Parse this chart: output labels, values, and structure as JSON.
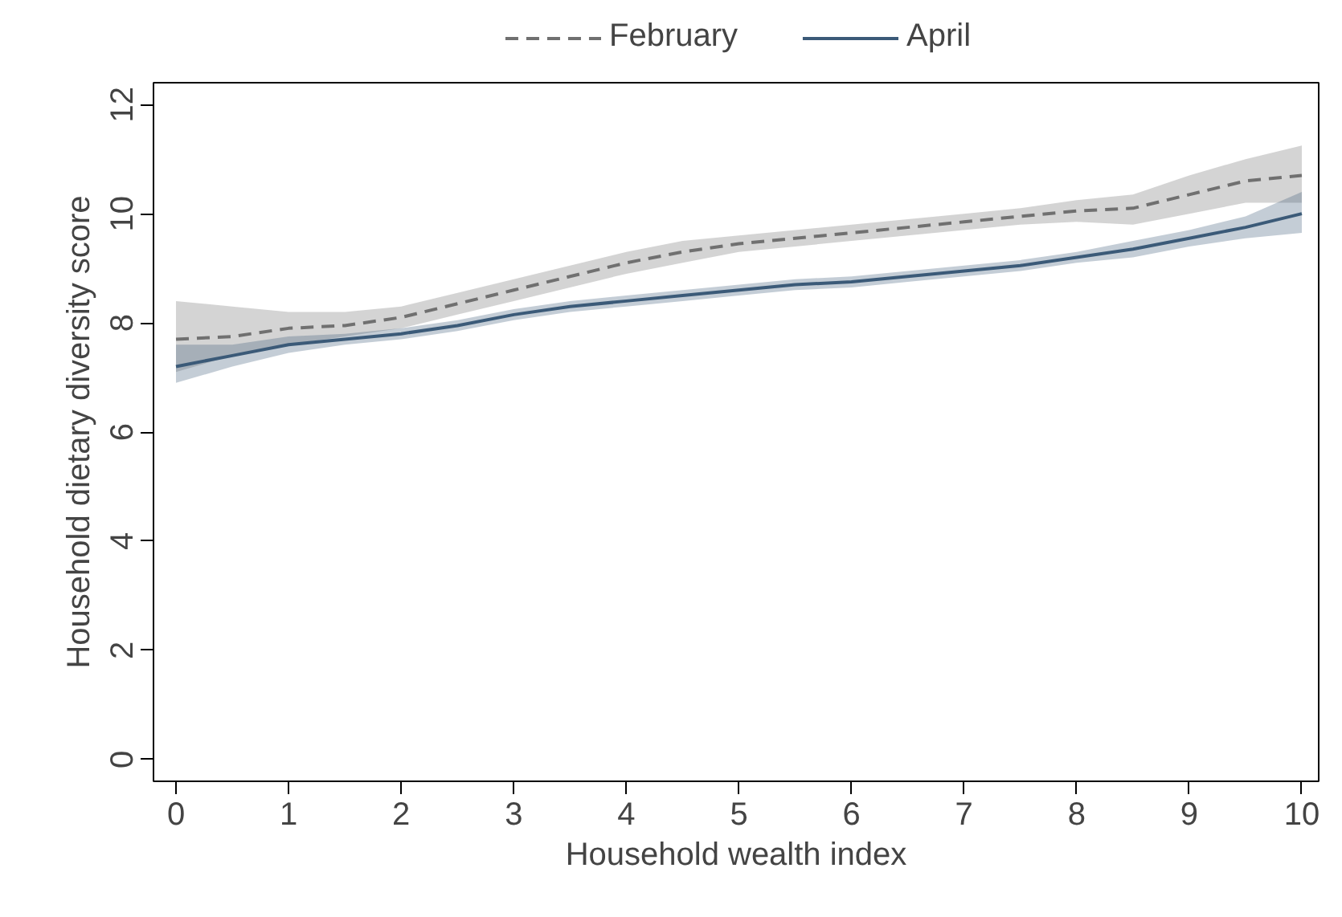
{
  "chart_data": {
    "type": "line",
    "xlabel": "Household wealth index",
    "ylabel": "Household dietary diversity score",
    "xlim": [
      -0.2,
      10.15
    ],
    "ylim": [
      -0.4,
      12.4
    ],
    "xticks": [
      0,
      1,
      2,
      3,
      4,
      5,
      6,
      7,
      8,
      9,
      10
    ],
    "yticks": [
      0,
      2,
      4,
      6,
      8,
      10,
      12
    ],
    "legend": "top",
    "grid": false,
    "x": [
      0,
      0.5,
      1,
      1.5,
      2,
      2.5,
      3,
      3.5,
      4,
      4.5,
      5,
      5.5,
      6,
      6.5,
      7,
      7.5,
      8,
      8.5,
      9,
      9.5,
      10
    ],
    "series": [
      {
        "name": "February",
        "color": "#707070",
        "line_style": "dashed",
        "values": [
          7.7,
          7.75,
          7.9,
          7.95,
          8.1,
          8.35,
          8.6,
          8.85,
          9.1,
          9.3,
          9.45,
          9.55,
          9.65,
          9.75,
          9.85,
          9.95,
          10.05,
          10.1,
          10.35,
          10.6,
          10.7
        ],
        "lower": [
          7.1,
          7.4,
          7.6,
          7.75,
          7.9,
          8.15,
          8.4,
          8.65,
          8.9,
          9.1,
          9.3,
          9.4,
          9.5,
          9.6,
          9.7,
          9.8,
          9.85,
          9.8,
          10.0,
          10.2,
          10.2
        ],
        "upper": [
          8.4,
          8.3,
          8.2,
          8.2,
          8.3,
          8.55,
          8.8,
          9.05,
          9.3,
          9.5,
          9.6,
          9.7,
          9.8,
          9.9,
          10.0,
          10.1,
          10.25,
          10.35,
          10.7,
          11.0,
          11.25
        ]
      },
      {
        "name": "April",
        "color": "#3b5a78",
        "line_style": "solid",
        "values": [
          7.2,
          7.4,
          7.6,
          7.7,
          7.8,
          7.95,
          8.15,
          8.3,
          8.4,
          8.5,
          8.6,
          8.7,
          8.75,
          8.85,
          8.95,
          9.05,
          9.2,
          9.35,
          9.55,
          9.75,
          10.0
        ],
        "lower": [
          6.9,
          7.2,
          7.45,
          7.6,
          7.7,
          7.85,
          8.05,
          8.2,
          8.3,
          8.4,
          8.5,
          8.6,
          8.65,
          8.75,
          8.85,
          8.95,
          9.1,
          9.2,
          9.4,
          9.55,
          9.65
        ],
        "upper": [
          7.6,
          7.6,
          7.75,
          7.8,
          7.9,
          8.05,
          8.25,
          8.4,
          8.5,
          8.6,
          8.7,
          8.8,
          8.85,
          8.95,
          9.05,
          9.15,
          9.3,
          9.5,
          9.7,
          9.95,
          10.4
        ]
      }
    ]
  }
}
